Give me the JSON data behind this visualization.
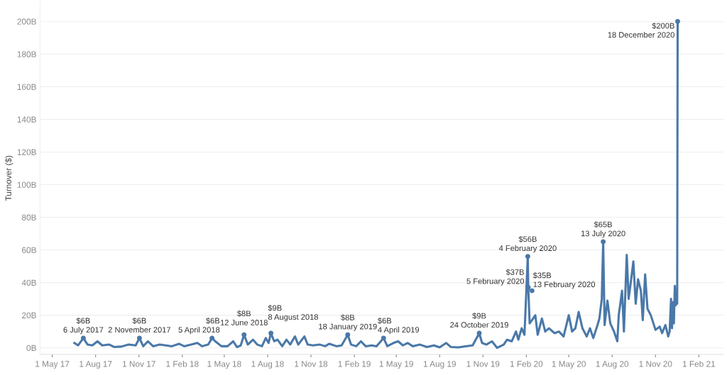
{
  "chart_data": {
    "type": "line",
    "ylabel": "Turnover ($)",
    "x": [
      "2017-06-17",
      "2017-06-25",
      "2017-07-06",
      "2017-07-15",
      "2017-07-25",
      "2017-08-05",
      "2017-08-15",
      "2017-08-30",
      "2017-09-10",
      "2017-09-25",
      "2017-10-10",
      "2017-10-25",
      "2017-11-02",
      "2017-11-10",
      "2017-11-20",
      "2017-12-01",
      "2017-12-15",
      "2017-12-28",
      "2018-01-10",
      "2018-01-25",
      "2018-02-05",
      "2018-02-20",
      "2018-03-05",
      "2018-03-15",
      "2018-03-28",
      "2018-04-05",
      "2018-04-12",
      "2018-04-25",
      "2018-05-08",
      "2018-05-20",
      "2018-05-28",
      "2018-06-05",
      "2018-06-12",
      "2018-06-20",
      "2018-07-01",
      "2018-07-10",
      "2018-07-20",
      "2018-07-28",
      "2018-08-03",
      "2018-08-08",
      "2018-08-15",
      "2018-08-22",
      "2018-09-01",
      "2018-09-10",
      "2018-09-18",
      "2018-09-28",
      "2018-10-05",
      "2018-10-18",
      "2018-10-25",
      "2018-11-05",
      "2018-11-20",
      "2018-12-01",
      "2018-12-10",
      "2018-12-25",
      "2019-01-05",
      "2019-01-18",
      "2019-01-25",
      "2019-02-05",
      "2019-02-15",
      "2019-02-25",
      "2019-03-10",
      "2019-03-20",
      "2019-04-04",
      "2019-04-12",
      "2019-04-25",
      "2019-05-05",
      "2019-05-15",
      "2019-05-25",
      "2019-06-05",
      "2019-06-20",
      "2019-07-05",
      "2019-07-20",
      "2019-08-01",
      "2019-08-15",
      "2019-08-25",
      "2019-09-10",
      "2019-09-25",
      "2019-10-10",
      "2019-10-24",
      "2019-10-30",
      "2019-11-08",
      "2019-11-20",
      "2019-12-01",
      "2019-12-15",
      "2019-12-22",
      "2020-01-01",
      "2020-01-10",
      "2020-01-15",
      "2020-01-22",
      "2020-01-28",
      "2020-02-04",
      "2020-02-05",
      "2020-02-08",
      "2020-02-13",
      "2020-02-20",
      "2020-02-25",
      "2020-03-05",
      "2020-03-12",
      "2020-03-20",
      "2020-04-01",
      "2020-04-10",
      "2020-04-20",
      "2020-05-01",
      "2020-05-08",
      "2020-05-15",
      "2020-05-22",
      "2020-05-30",
      "2020-06-08",
      "2020-06-15",
      "2020-06-22",
      "2020-07-01",
      "2020-07-05",
      "2020-07-10",
      "2020-07-13",
      "2020-07-16",
      "2020-07-22",
      "2020-07-28",
      "2020-08-05",
      "2020-08-12",
      "2020-08-15",
      "2020-08-22",
      "2020-08-26",
      "2020-09-01",
      "2020-09-05",
      "2020-09-10",
      "2020-09-15",
      "2020-09-20",
      "2020-09-25",
      "2020-10-01",
      "2020-10-05",
      "2020-10-10",
      "2020-10-15",
      "2020-10-22",
      "2020-11-01",
      "2020-11-10",
      "2020-11-15",
      "2020-11-22",
      "2020-11-28",
      "2020-12-01",
      "2020-12-04",
      "2020-12-06",
      "2020-12-08",
      "2020-12-10",
      "2020-12-12",
      "2020-12-14",
      "2020-12-16",
      "2020-12-17",
      "2020-12-18"
    ],
    "series": [
      {
        "color": "#4a78a8",
        "values": [
          3,
          1.5,
          6,
          2,
          1.5,
          4,
          1.5,
          2,
          0.5,
          0.8,
          2,
          1.5,
          6,
          1,
          4,
          1,
          2,
          1.5,
          1,
          2.5,
          1,
          2,
          3,
          1,
          2,
          6,
          4,
          1,
          1,
          4,
          0.5,
          1.5,
          8,
          2,
          5,
          2,
          1,
          6,
          3,
          9,
          4,
          5,
          1,
          5,
          2,
          7,
          2,
          7,
          2,
          1.5,
          2,
          1,
          2.5,
          1,
          1.5,
          8,
          2,
          1,
          4,
          1,
          1.5,
          1,
          6,
          1,
          3,
          4,
          1.5,
          3,
          1,
          2,
          0.5,
          1.5,
          0.3,
          3,
          0.5,
          0.3,
          1,
          1.5,
          9,
          3,
          2,
          4,
          0,
          2,
          5,
          4,
          10,
          5,
          12,
          8,
          56,
          37,
          15,
          17,
          20,
          8,
          18,
          10,
          12,
          9,
          10,
          7,
          20,
          10,
          12,
          22,
          12,
          7,
          12,
          6,
          14,
          18,
          30,
          65,
          14,
          29,
          15,
          10,
          4,
          20,
          35,
          10,
          57,
          30,
          41,
          53,
          27,
          42,
          35,
          17,
          45,
          24,
          20,
          11,
          13,
          9,
          14,
          7,
          10,
          30,
          12,
          28,
          15,
          38,
          26,
          30,
          27,
          200
        ]
      }
    ],
    "xlim": [
      "2017-04-05",
      "2021-03-25"
    ],
    "xticks": [
      {
        "value": "2017-05-01",
        "label": "1 May 17"
      },
      {
        "value": "2017-08-01",
        "label": "1 Aug 17"
      },
      {
        "value": "2017-11-01",
        "label": "1 Nov 17"
      },
      {
        "value": "2018-02-01",
        "label": "1 Feb 18"
      },
      {
        "value": "2018-05-01",
        "label": "1 May 18"
      },
      {
        "value": "2018-08-01",
        "label": "1 Aug 18"
      },
      {
        "value": "2018-11-01",
        "label": "1 Nov 18"
      },
      {
        "value": "2019-02-01",
        "label": "1 Feb 19"
      },
      {
        "value": "2019-05-01",
        "label": "1 May 19"
      },
      {
        "value": "2019-08-01",
        "label": "1 Aug 19"
      },
      {
        "value": "2019-11-01",
        "label": "1 Nov 19"
      },
      {
        "value": "2020-02-01",
        "label": "1 Feb 20"
      },
      {
        "value": "2020-05-01",
        "label": "1 May 20"
      },
      {
        "value": "2020-08-01",
        "label": "1 Aug 20"
      },
      {
        "value": "2020-11-01",
        "label": "1 Nov 20"
      },
      {
        "value": "2021-02-01",
        "label": "1 Feb 21"
      }
    ],
    "ylim": [
      -4,
      212
    ],
    "yticks": [
      {
        "value": 0,
        "label": "0B"
      },
      {
        "value": 20,
        "label": "20B"
      },
      {
        "value": 40,
        "label": "40B"
      },
      {
        "value": 60,
        "label": "60B"
      },
      {
        "value": 80,
        "label": "80B"
      },
      {
        "value": 100,
        "label": "100B"
      },
      {
        "value": 120,
        "label": "120B"
      },
      {
        "value": 140,
        "label": "140B"
      },
      {
        "value": 160,
        "label": "160B"
      },
      {
        "value": 180,
        "label": "180B"
      },
      {
        "value": 200,
        "label": "200B"
      }
    ],
    "grid": "y",
    "marker": "none",
    "line_style": "solid",
    "annotations": [
      {
        "text": "$6B\n6 July 2017",
        "x": "2017-07-06",
        "y": 6
      },
      {
        "text": "$6B\n2 November 2017",
        "x": "2017-11-02",
        "y": 6
      },
      {
        "text": "$6B\n5 April 2018",
        "x": "2018-04-05",
        "y": 6
      },
      {
        "text": "$8B\n12 June 2018",
        "x": "2018-06-12",
        "y": 8
      },
      {
        "text": "$9B\n8 August 2018",
        "x": "2018-08-08",
        "y": 9
      },
      {
        "text": "$8B\n18 January 2019",
        "x": "2019-01-18",
        "y": 8
      },
      {
        "text": "$6B\n4 April 2019",
        "x": "2019-04-04",
        "y": 6
      },
      {
        "text": "$9B\n24 October 2019",
        "x": "2019-10-24",
        "y": 9
      },
      {
        "text": "$56B\n4 February 2020",
        "x": "2020-02-04",
        "y": 56
      },
      {
        "text": "$37B\n5 February 2020",
        "x": "2020-02-05",
        "y": 37
      },
      {
        "text": "$35B\n13 February 2020",
        "x": "2020-02-13",
        "y": 35
      },
      {
        "text": "$65B\n13 July 2020",
        "x": "2020-07-13",
        "y": 65
      },
      {
        "text": "$200B\n18 December 2020",
        "x": "2020-12-18",
        "y": 200
      }
    ]
  }
}
